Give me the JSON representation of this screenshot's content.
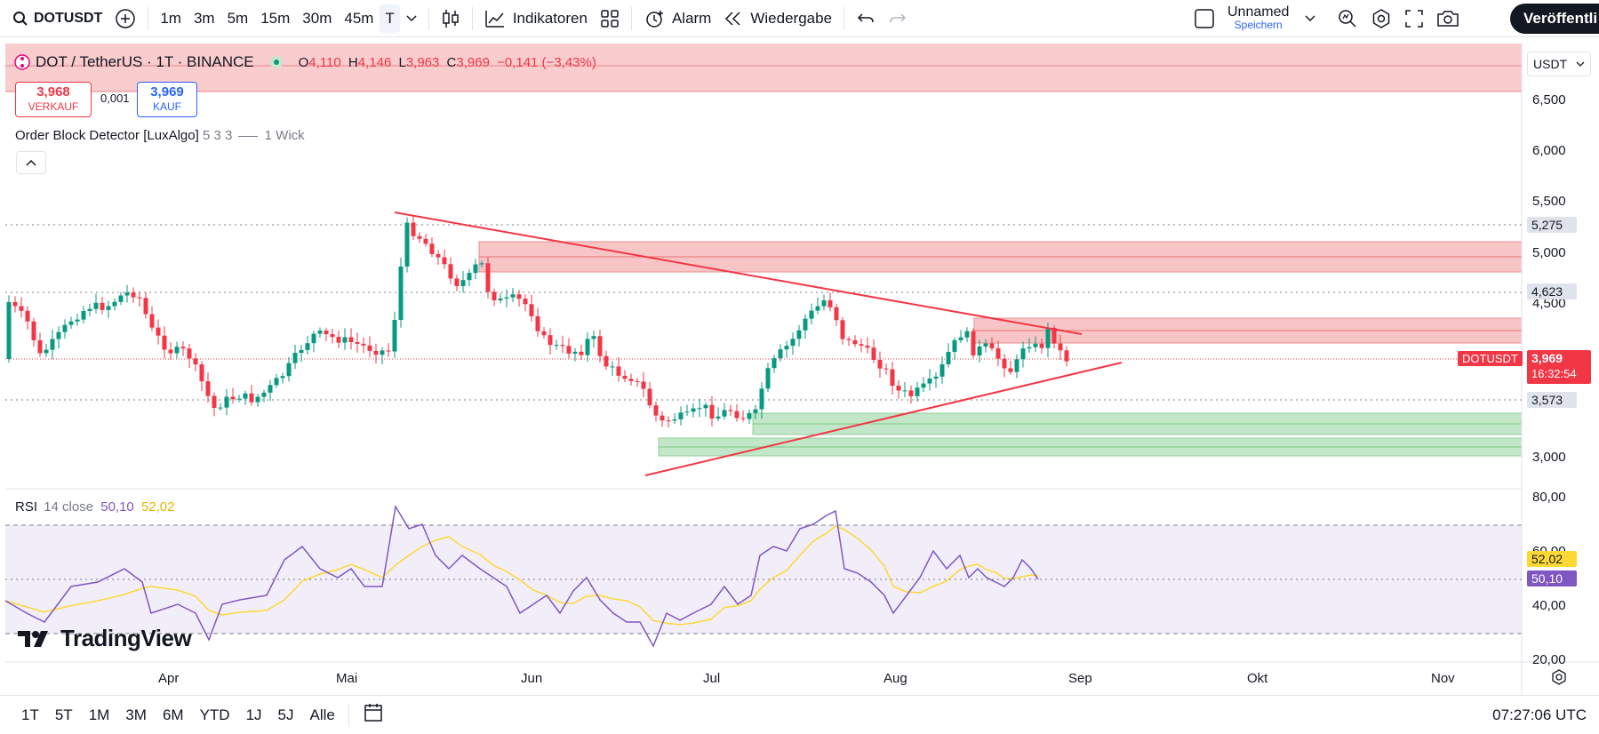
{
  "topbar": {
    "symbol": "DOTUSDT",
    "intervals": [
      "1m",
      "3m",
      "5m",
      "15m",
      "30m",
      "45m",
      "T"
    ],
    "active_interval": "T",
    "indicators_label": "Indikatoren",
    "alarm_label": "Alarm",
    "replay_label": "Wiedergabe",
    "layout_name": "Unnamed",
    "layout_save": "Speichern",
    "publish_label": "Veröffentli"
  },
  "legend": {
    "title": "DOT / TetherUS · 1T · BINANCE",
    "o_label": "O",
    "o_val": "4,110",
    "h_label": "H",
    "h_val": "4,146",
    "l_label": "L",
    "l_val": "3,963",
    "c_label": "C",
    "c_val": "3,969",
    "change": "−0,141 (−3,43%)",
    "sell_price": "3,968",
    "sell_label": "VERKAUF",
    "spread": "0,001",
    "buy_price": "3,969",
    "buy_label": "KAUF",
    "indicator": "Order Block Detector [LuxAlgo]",
    "indicator_params": "5 3 3",
    "indicator_wick": "1 Wick"
  },
  "rsi_legend": {
    "label": "RSI",
    "params": "14 close",
    "v1": "50,10",
    "v2": "52,02"
  },
  "price_axis": {
    "currency": "USDT",
    "ticks": [
      "6,500",
      "6,000",
      "5,500",
      "5,000",
      "4,500",
      "3,000"
    ],
    "level_tags": [
      "5,275",
      "4,623",
      "3,573"
    ],
    "symbol_tag": "DOTUSDT",
    "last_price": "3,969",
    "countdown": "16:32:54"
  },
  "rsi_axis": {
    "ticks": [
      "80,00",
      "60,00",
      "40,00",
      "20,00"
    ],
    "tag_ma": "52,02",
    "tag_rsi": "50,10"
  },
  "time_axis": {
    "labels": [
      "Apr",
      "Mai",
      "Jun",
      "Jul",
      "Aug",
      "Sep",
      "Okt",
      "Nov"
    ]
  },
  "bottombar": {
    "ranges": [
      "1T",
      "5T",
      "1M",
      "3M",
      "6M",
      "YTD",
      "1J",
      "5J",
      "Alle"
    ],
    "clock": "07:27:06 UTC"
  },
  "watermark": "TradingView",
  "colors": {
    "up": "#089981",
    "down": "#f23645",
    "rsi": "#7e57c2",
    "rsi_ma": "#fdd835",
    "accent": "#2962ff"
  }
}
